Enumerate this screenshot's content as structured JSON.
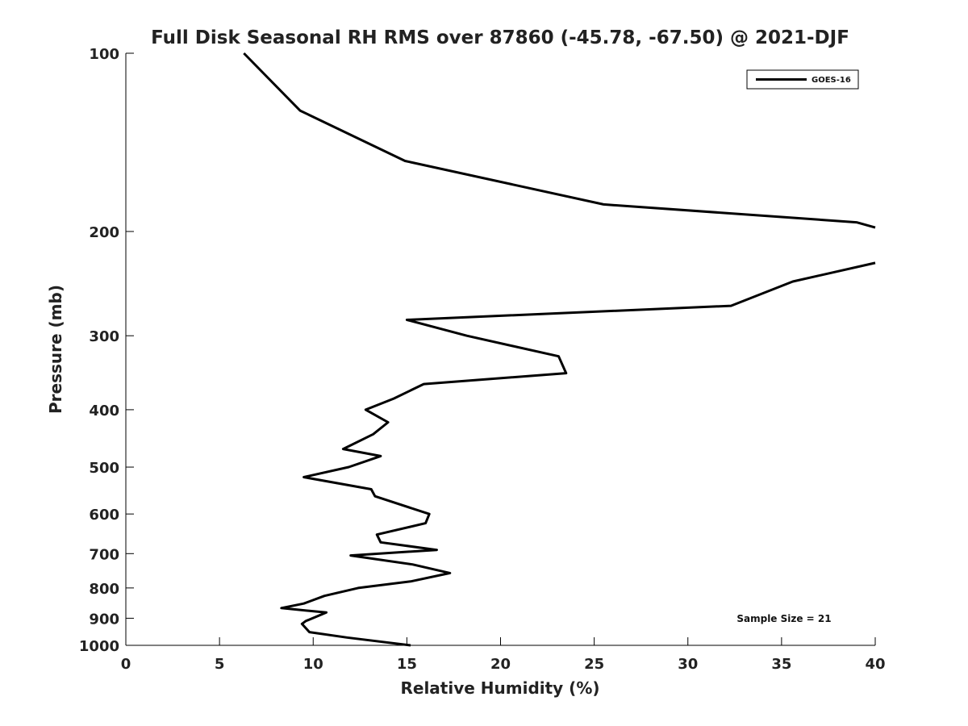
{
  "chart_data": {
    "type": "line",
    "title": "Full Disk Seasonal RH RMS over 87860 (-45.78, -67.50) @ 2021-DJF",
    "xlabel": "Relative Humidity (%)",
    "ylabel": "Pressure (mb)",
    "xlim": [
      0,
      40
    ],
    "ylim": [
      100,
      1000
    ],
    "yscale": "log",
    "yinverted": true,
    "xticks": [
      0,
      5,
      10,
      15,
      20,
      25,
      30,
      35,
      40
    ],
    "yticks": [
      100,
      200,
      300,
      400,
      500,
      600,
      700,
      800,
      900,
      1000
    ],
    "grid": false,
    "legend_position": "top-right",
    "annotation": "Sample Size = 21",
    "line_color": "#000000",
    "series": [
      {
        "name": "GOES-16",
        "points": [
          [
            6.3,
            100
          ],
          [
            9.3,
            125
          ],
          [
            14.9,
            152
          ],
          [
            25.5,
            180
          ],
          [
            39.0,
            193
          ],
          [
            40.0,
            197
          ],
          [
            null,
            null
          ],
          [
            40.0,
            226
          ],
          [
            35.6,
            243
          ],
          [
            32.3,
            267
          ],
          [
            15.0,
            282
          ],
          [
            18.2,
            300
          ],
          [
            23.1,
            325
          ],
          [
            23.5,
            347
          ],
          [
            15.9,
            362
          ],
          [
            14.3,
            383
          ],
          [
            12.8,
            400
          ],
          [
            14.0,
            420
          ],
          [
            13.2,
            440
          ],
          [
            11.6,
            466
          ],
          [
            13.6,
            479
          ],
          [
            11.9,
            500
          ],
          [
            9.5,
            520
          ],
          [
            13.1,
            545
          ],
          [
            13.3,
            560
          ],
          [
            16.2,
            600
          ],
          [
            16.0,
            622
          ],
          [
            13.4,
            650
          ],
          [
            13.6,
            670
          ],
          [
            16.6,
            690
          ],
          [
            12.0,
            705
          ],
          [
            15.3,
            730
          ],
          [
            17.3,
            755
          ],
          [
            15.2,
            780
          ],
          [
            12.4,
            800
          ],
          [
            10.6,
            825
          ],
          [
            9.5,
            850
          ],
          [
            8.3,
            865
          ],
          [
            10.7,
            880
          ],
          [
            9.6,
            910
          ],
          [
            9.4,
            920
          ],
          [
            9.8,
            950
          ],
          [
            11.8,
            970
          ],
          [
            15.2,
            1000
          ]
        ]
      }
    ]
  }
}
